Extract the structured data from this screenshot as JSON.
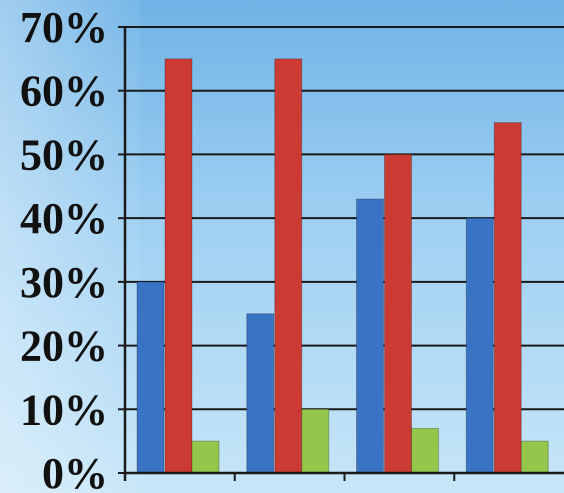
{
  "chart_data": {
    "type": "bar",
    "categories": [
      "",
      "",
      "",
      ""
    ],
    "series": [
      {
        "values": [
          30,
          25,
          43,
          40
        ],
        "color": "#3a72c4"
      },
      {
        "values": [
          65,
          65,
          50,
          55
        ],
        "color": "#cc3b33"
      },
      {
        "values": [
          5,
          10,
          7,
          5
        ],
        "color": "#93c64a"
      }
    ],
    "ylim": [
      0,
      70
    ],
    "yticks": [
      "0%",
      "10%",
      "20%",
      "30%",
      "40%",
      "50%",
      "60%",
      "70%"
    ],
    "grid": true,
    "legend": "none"
  }
}
